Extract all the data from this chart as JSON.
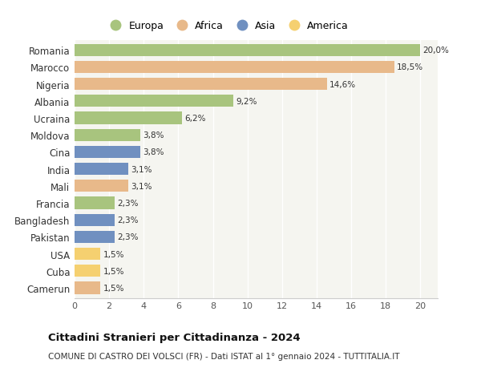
{
  "countries": [
    "Romania",
    "Marocco",
    "Nigeria",
    "Albania",
    "Ucraina",
    "Moldova",
    "Cina",
    "India",
    "Mali",
    "Francia",
    "Bangladesh",
    "Pakistan",
    "USA",
    "Cuba",
    "Camerun"
  ],
  "values": [
    20.0,
    18.5,
    14.6,
    9.2,
    6.2,
    3.8,
    3.8,
    3.1,
    3.1,
    2.3,
    2.3,
    2.3,
    1.5,
    1.5,
    1.5
  ],
  "labels": [
    "20,0%",
    "18,5%",
    "14,6%",
    "9,2%",
    "6,2%",
    "3,8%",
    "3,8%",
    "3,1%",
    "3,1%",
    "2,3%",
    "2,3%",
    "2,3%",
    "1,5%",
    "1,5%",
    "1,5%"
  ],
  "continents": [
    "Europa",
    "Africa",
    "Africa",
    "Europa",
    "Europa",
    "Europa",
    "Asia",
    "Asia",
    "Africa",
    "Europa",
    "Asia",
    "Asia",
    "America",
    "America",
    "Africa"
  ],
  "colors": {
    "Europa": "#a8c47e",
    "Africa": "#e8b98a",
    "Asia": "#7090c0",
    "America": "#f5d070"
  },
  "legend_order": [
    "Europa",
    "Africa",
    "Asia",
    "America"
  ],
  "title": "Cittadini Stranieri per Cittadinanza - 2024",
  "subtitle": "COMUNE DI CASTRO DEI VOLSCI (FR) - Dati ISTAT al 1° gennaio 2024 - TUTTITALIA.IT",
  "xlim": [
    0,
    21
  ],
  "xticks": [
    0,
    2,
    4,
    6,
    8,
    10,
    12,
    14,
    16,
    18,
    20
  ],
  "background_color": "#ffffff",
  "plot_bg_color": "#f5f5f0",
  "grid_color": "#ffffff",
  "bar_height": 0.72
}
